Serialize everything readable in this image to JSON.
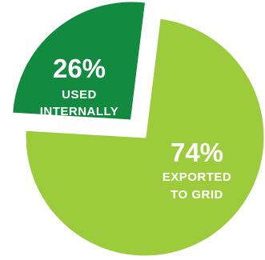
{
  "chart_data": {
    "type": "pie",
    "slices": [
      {
        "value": 26,
        "percent_label": "26%",
        "label_lines": [
          "USED",
          "INTERNALLY"
        ],
        "color": "#128a3f",
        "exploded": true
      },
      {
        "value": 74,
        "percent_label": "74%",
        "label_lines": [
          "EXPORTED",
          "TO GRID"
        ],
        "color": "#9ccb3b",
        "exploded": false
      }
    ],
    "legend": "none"
  }
}
